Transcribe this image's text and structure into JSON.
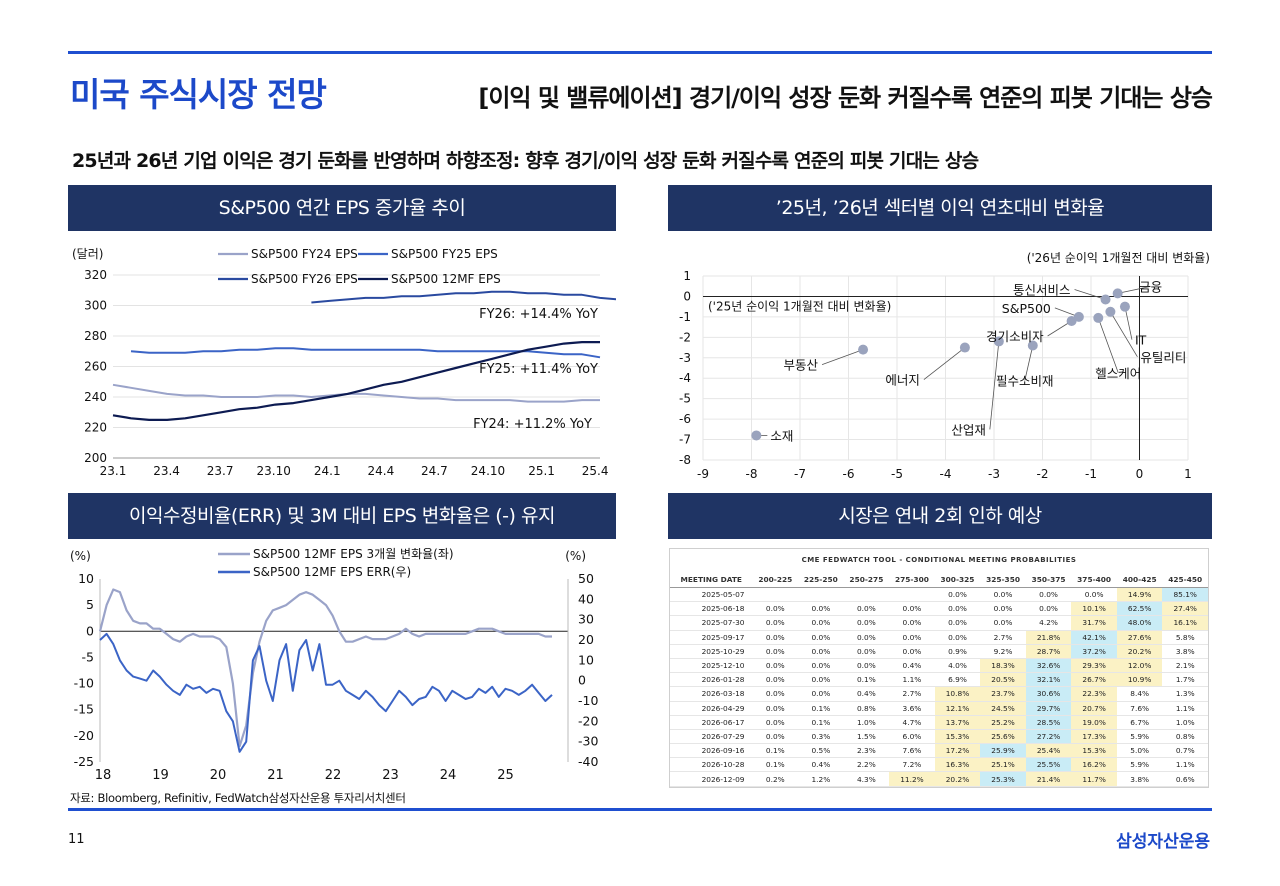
{
  "header": {
    "title": "미국 주식시장 전망",
    "subtitle": "[이익 및 밸류에이션] 경기/이익 성장 둔화 커질수록 연준의 피봇 기대는 상승",
    "headline": "25년과 26년 기업 이익은 경기 둔화를 반영하며 하향조정: 향후 경기/이익 성장 둔화 커질수록 연준의 피봇 기대는 상승"
  },
  "panels": {
    "eps_title": "S&P500 연간 EPS 증가율 추이",
    "sector_title": "’25년, ’26년 섹터별 이익 연초대비 변화율",
    "err_title": "이익수정비율(ERR) 및 3M 대비 EPS 변화율은 (-) 유지",
    "fed_title": "시장은 연내 2회 인하 예상"
  },
  "footer": {
    "source": "자료: Bloomberg, Refinitiv, FedWatch삼성자산운용 투자리서치센터",
    "page": "11",
    "brand": "삼성자산운용"
  },
  "colors": {
    "accent": "#1c49c9",
    "panel_bg": "#1f3464",
    "light_series": "#9aa3c9",
    "mid_series": "#3b64c6",
    "dark_series": "#0d1b52"
  },
  "chart_data": [
    {
      "id": "eps",
      "type": "line",
      "unit_label": "(달러)",
      "xticks": [
        "23.1",
        "23.4",
        "23.7",
        "23.10",
        "24.1",
        "24.4",
        "24.7",
        "24.10",
        "25.1",
        "25.4"
      ],
      "yticks": [
        200,
        220,
        240,
        260,
        280,
        300,
        320
      ],
      "ylim": [
        200,
        320
      ],
      "legend": [
        "S&P500 FY24 EPS",
        "S&P500 FY25 EPS",
        "S&P500 FY26 EPS",
        "S&P500 12MF EPS"
      ],
      "annotations": [
        "FY26: +14.4% YoY",
        "FY25: +11.4% YoY",
        "FY24: +11.2% YoY"
      ],
      "series": [
        {
          "name": "S&P500 FY24 EPS",
          "start": 0,
          "values": [
            248,
            246,
            244,
            242,
            241,
            241,
            240,
            240,
            240,
            241,
            241,
            240,
            241,
            242,
            242,
            241,
            240,
            239,
            239,
            238,
            238,
            238,
            238,
            237,
            237,
            237,
            238,
            238
          ]
        },
        {
          "name": "S&P500 FY25 EPS",
          "start": 1,
          "values": [
            270,
            269,
            269,
            269,
            270,
            270,
            271,
            271,
            272,
            272,
            271,
            271,
            271,
            271,
            271,
            271,
            271,
            270,
            270,
            270,
            270,
            270,
            270,
            269,
            268,
            268,
            266
          ]
        },
        {
          "name": "S&P500 FY26 EPS",
          "start": 11,
          "values": [
            302,
            303,
            304,
            305,
            305,
            306,
            306,
            307,
            308,
            308,
            309,
            309,
            308,
            308,
            307,
            307,
            305,
            304,
            304
          ]
        },
        {
          "name": "S&P500 12MF EPS",
          "start": 0,
          "values": [
            228,
            226,
            225,
            225,
            226,
            228,
            230,
            232,
            233,
            235,
            236,
            238,
            240,
            242,
            245,
            248,
            250,
            253,
            256,
            259,
            262,
            265,
            268,
            271,
            273,
            275,
            276,
            276
          ]
        }
      ]
    },
    {
      "id": "sector",
      "type": "scatter",
      "xlabel": "('25년 순이익 1개월전 대비 변화율)",
      "ylabel": "('26년 순이익 1개월전 대비 변화율)",
      "xlim": [
        -9,
        1
      ],
      "ylim": [
        -8,
        1
      ],
      "xticks": [
        -9,
        -8,
        -7,
        -6,
        -5,
        -4,
        -3,
        -2,
        -1,
        0,
        1
      ],
      "yticks": [
        1,
        0,
        -1,
        -2,
        -3,
        -4,
        -5,
        -6,
        -7,
        -8
      ],
      "points": [
        {
          "label": "소재",
          "x": -7.9,
          "y": -6.8
        },
        {
          "label": "부동산",
          "x": -5.7,
          "y": -2.6
        },
        {
          "label": "에너지",
          "x": -3.6,
          "y": -2.5
        },
        {
          "label": "산업재",
          "x": -2.9,
          "y": -2.2
        },
        {
          "label": "필수소비재",
          "x": -2.2,
          "y": -2.4
        },
        {
          "label": "경기소비자",
          "x": -1.4,
          "y": -1.2
        },
        {
          "label": "S&P500",
          "x": -1.25,
          "y": -1.0
        },
        {
          "label": "헬스케어",
          "x": -0.85,
          "y": -1.05
        },
        {
          "label": "유틸리티",
          "x": -0.6,
          "y": -0.75
        },
        {
          "label": "IT",
          "x": -0.3,
          "y": -0.5
        },
        {
          "label": "통신서비스",
          "x": -0.7,
          "y": -0.15
        },
        {
          "label": "금융",
          "x": -0.45,
          "y": 0.15
        }
      ]
    },
    {
      "id": "err",
      "type": "line",
      "left_unit": "(%)",
      "right_unit": "(%)",
      "xticks": [
        "18",
        "19",
        "20",
        "21",
        "22",
        "23",
        "24",
        "25"
      ],
      "yticks_left": [
        10,
        5,
        0,
        -5,
        -10,
        -15,
        -20,
        -25
      ],
      "yticks_right": [
        50,
        40,
        30,
        20,
        10,
        0,
        -10,
        -20,
        -30,
        -40
      ],
      "ylim_left": [
        -25,
        10
      ],
      "ylim_right": [
        -40,
        50
      ],
      "legend": [
        "S&P500 12MF EPS 3개월 변화율(좌)",
        "S&P500 12MF EPS ERR(우)"
      ],
      "series": [
        {
          "name": "S&P500 12MF EPS 3개월 변화율(좌)",
          "axis": "left",
          "values": [
            0,
            5,
            8,
            7.5,
            4,
            2,
            1.5,
            1.5,
            0.5,
            0.5,
            -0.5,
            -1.5,
            -2,
            -1,
            -0.5,
            -1,
            -1,
            -1,
            -1.5,
            -3,
            -10,
            -22,
            -18,
            -8,
            -2,
            2,
            4,
            4.5,
            5,
            6,
            7,
            7.5,
            7,
            6,
            5,
            3,
            0,
            -2,
            -2,
            -1.5,
            -1,
            -1.5,
            -1.5,
            -1.5,
            -1,
            -0.5,
            0.5,
            -0.5,
            -1,
            -0.5,
            -0.5,
            -0.5,
            -0.5,
            -0.5,
            -0.5,
            -0.5,
            0,
            0.5,
            0.5,
            0.5,
            0,
            -0.5,
            -0.5,
            -0.5,
            -0.5,
            -0.5,
            -0.5,
            -1,
            -1
          ]
        },
        {
          "name": "S&P500 12MF EPS ERR(우)",
          "axis": "right",
          "values": [
            20,
            23,
            18,
            10,
            5,
            2,
            1,
            0,
            5,
            2,
            -2,
            -5,
            -7,
            -2,
            -4,
            -3,
            -6,
            -4,
            -5,
            -15,
            -20,
            -35,
            -30,
            10,
            17,
            0,
            -10,
            10,
            18,
            -5,
            15,
            20,
            5,
            18,
            -2,
            -2,
            0,
            -5,
            -7,
            -9,
            -5,
            -8,
            -12,
            -15,
            -10,
            -5,
            -8,
            -12,
            -9,
            -8,
            -3,
            -5,
            -10,
            -5,
            -7,
            -9,
            -8,
            -4,
            -6,
            -3,
            -8,
            -4,
            -5,
            -7,
            -5,
            -2,
            -6,
            -10,
            -7
          ]
        }
      ]
    },
    {
      "id": "fedwatch",
      "type": "table",
      "title": "CME FEDWATCH TOOL - CONDITIONAL MEETING PROBABILITIES",
      "columns": [
        "MEETING DATE",
        "200-225",
        "225-250",
        "250-275",
        "275-300",
        "300-325",
        "325-350",
        "350-375",
        "375-400",
        "400-425",
        "425-450"
      ],
      "rows": [
        [
          "2025-05-07",
          "",
          "",
          "",
          "",
          "0.0%",
          "0.0%",
          "0.0%",
          "0.0%",
          "14.9%",
          "85.1%"
        ],
        [
          "2025-06-18",
          "0.0%",
          "0.0%",
          "0.0%",
          "0.0%",
          "0.0%",
          "0.0%",
          "0.0%",
          "10.1%",
          "62.5%",
          "27.4%"
        ],
        [
          "2025-07-30",
          "0.0%",
          "0.0%",
          "0.0%",
          "0.0%",
          "0.0%",
          "0.0%",
          "4.2%",
          "31.7%",
          "48.0%",
          "16.1%"
        ],
        [
          "2025-09-17",
          "0.0%",
          "0.0%",
          "0.0%",
          "0.0%",
          "0.0%",
          "2.7%",
          "21.8%",
          "42.1%",
          "27.6%",
          "5.8%"
        ],
        [
          "2025-10-29",
          "0.0%",
          "0.0%",
          "0.0%",
          "0.0%",
          "0.9%",
          "9.2%",
          "28.7%",
          "37.2%",
          "20.2%",
          "3.8%"
        ],
        [
          "2025-12-10",
          "0.0%",
          "0.0%",
          "0.0%",
          "0.4%",
          "4.0%",
          "18.3%",
          "32.6%",
          "29.3%",
          "12.0%",
          "2.1%"
        ],
        [
          "2026-01-28",
          "0.0%",
          "0.0%",
          "0.1%",
          "1.1%",
          "6.9%",
          "20.5%",
          "32.1%",
          "26.7%",
          "10.9%",
          "1.7%"
        ],
        [
          "2026-03-18",
          "0.0%",
          "0.0%",
          "0.4%",
          "2.7%",
          "10.8%",
          "23.7%",
          "30.6%",
          "22.3%",
          "8.4%",
          "1.3%"
        ],
        [
          "2026-04-29",
          "0.0%",
          "0.1%",
          "0.8%",
          "3.6%",
          "12.1%",
          "24.5%",
          "29.7%",
          "20.7%",
          "7.6%",
          "1.1%"
        ],
        [
          "2026-06-17",
          "0.0%",
          "0.1%",
          "1.0%",
          "4.7%",
          "13.7%",
          "25.2%",
          "28.5%",
          "19.0%",
          "6.7%",
          "1.0%"
        ],
        [
          "2026-07-29",
          "0.0%",
          "0.3%",
          "1.5%",
          "6.0%",
          "15.3%",
          "25.6%",
          "27.2%",
          "17.3%",
          "5.9%",
          "0.8%"
        ],
        [
          "2026-09-16",
          "0.1%",
          "0.5%",
          "2.3%",
          "7.6%",
          "17.2%",
          "25.9%",
          "25.4%",
          "15.3%",
          "5.0%",
          "0.7%"
        ],
        [
          "2026-10-28",
          "0.1%",
          "0.4%",
          "2.2%",
          "7.2%",
          "16.3%",
          "25.1%",
          "25.5%",
          "16.2%",
          "5.9%",
          "1.1%"
        ],
        [
          "2026-12-09",
          "0.2%",
          "1.2%",
          "4.3%",
          "11.2%",
          "20.2%",
          "25.3%",
          "21.4%",
          "11.7%",
          "3.8%",
          "0.6%"
        ]
      ]
    }
  ]
}
